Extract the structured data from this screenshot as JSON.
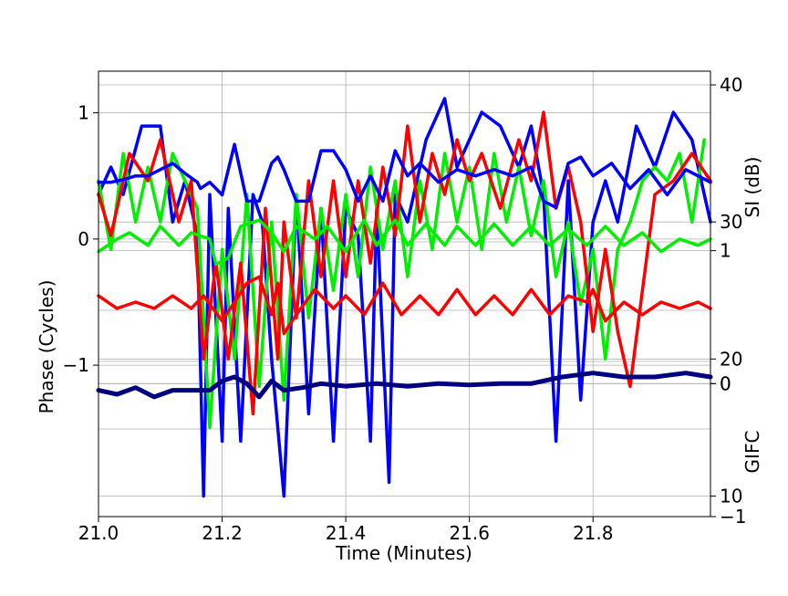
{
  "chart_data": {
    "type": "line",
    "xlabel": "Time (Minutes)",
    "x_ticks": [
      "21.0",
      "21.2",
      "21.4",
      "21.6",
      "21.8"
    ],
    "xlim": [
      21.0,
      21.99
    ],
    "grid": true,
    "legend": "none",
    "panels": {
      "si": {
        "ylabel": "SI (dB)",
        "ylim": [
          8.5,
          41
        ],
        "ticks": [
          "10",
          "20",
          "30",
          "40"
        ],
        "tick_values": [
          10,
          20,
          30,
          40
        ]
      },
      "phase": {
        "ylabel": "Phase (Cycles)",
        "ylim": [
          -2.2,
          1.33
        ],
        "ticks": [
          "−1",
          "0",
          "1"
        ],
        "tick_values": [
          -1,
          0,
          1
        ]
      },
      "gifc": {
        "ylabel": "GIFC",
        "ylim": [
          -1,
          2.35
        ],
        "ticks": [
          "−1",
          "0",
          "1",
          "0"
        ],
        "tick_values": [
          -1,
          0,
          1,
          0
        ]
      }
    },
    "colors": {
      "blue": "#0000ff",
      "green": "#00ee00",
      "red": "#ff0000",
      "navy": "#000080",
      "grid": "#b0b0b0"
    },
    "series": [
      {
        "color": "blue",
        "panel": "si",
        "x": [
          21.0,
          21.02,
          21.04,
          21.07,
          21.1,
          21.12,
          21.14,
          21.16,
          21.17,
          21.18,
          21.2,
          21.21,
          21.23,
          21.25,
          21.265,
          21.28,
          21.3,
          21.32,
          21.34,
          21.36,
          21.38,
          21.4,
          21.42,
          21.44,
          21.45,
          21.47,
          21.48,
          21.5,
          21.53,
          21.56,
          21.58,
          21.6,
          21.62,
          21.65,
          21.68,
          21.7,
          21.72,
          21.74,
          21.76,
          21.78,
          21.8,
          21.82,
          21.84,
          21.87,
          21.9,
          21.93,
          21.96,
          21.99
        ],
        "y": [
          32,
          34,
          32,
          37,
          37,
          30,
          33,
          29,
          10,
          32,
          14,
          31,
          14,
          32,
          30,
          20,
          10,
          32,
          16,
          31,
          14,
          31,
          29,
          14,
          31,
          11,
          32,
          30,
          36,
          39,
          34,
          36,
          38,
          37,
          34,
          37,
          32,
          14,
          33,
          17,
          30,
          33,
          30,
          37,
          34,
          38,
          36,
          30
        ]
      },
      {
        "color": "green",
        "panel": "si",
        "x": [
          21.0,
          21.02,
          21.04,
          21.06,
          21.08,
          21.1,
          21.12,
          21.14,
          21.16,
          21.18,
          21.2,
          21.22,
          21.24,
          21.26,
          21.28,
          21.3,
          21.32,
          21.34,
          21.36,
          21.38,
          21.4,
          21.42,
          21.44,
          21.46,
          21.48,
          21.5,
          21.52,
          21.54,
          21.56,
          21.58,
          21.6,
          21.62,
          21.64,
          21.66,
          21.68,
          21.7,
          21.72,
          21.74,
          21.76,
          21.78,
          21.8,
          21.82,
          21.84,
          21.86,
          21.88,
          21.9,
          21.92,
          21.94,
          21.96,
          21.98
        ],
        "y": [
          33,
          28,
          35,
          30,
          34,
          30,
          35,
          33,
          31,
          15,
          28,
          20,
          32,
          18,
          30,
          17,
          32,
          23,
          31,
          25,
          32,
          26,
          34,
          28,
          33,
          26,
          33,
          28,
          35,
          30,
          34,
          28,
          35,
          30,
          34,
          29,
          33,
          26,
          30,
          24,
          28,
          20,
          28,
          30,
          33,
          34,
          33,
          35,
          30,
          36
        ]
      },
      {
        "color": "red",
        "panel": "si",
        "x": [
          21.0,
          21.02,
          21.05,
          21.08,
          21.1,
          21.13,
          21.15,
          21.17,
          21.19,
          21.21,
          21.23,
          21.25,
          21.27,
          21.29,
          21.3,
          21.32,
          21.34,
          21.36,
          21.38,
          21.4,
          21.42,
          21.44,
          21.46,
          21.48,
          21.5,
          21.52,
          21.54,
          21.56,
          21.58,
          21.6,
          21.62,
          21.65,
          21.68,
          21.7,
          21.72,
          21.74,
          21.76,
          21.78,
          21.8,
          21.82,
          21.84,
          21.86,
          21.88,
          21.9,
          21.93,
          21.96,
          21.99
        ],
        "y": [
          32,
          29,
          35,
          33,
          36,
          30,
          33,
          20,
          27,
          20,
          27,
          16,
          31,
          20,
          30,
          23,
          33,
          26,
          33,
          26,
          33,
          27,
          34,
          29,
          37,
          30,
          35,
          32,
          36,
          33,
          35,
          31,
          36,
          33,
          38,
          31,
          34,
          30,
          22,
          28,
          22,
          18,
          25,
          32,
          33,
          35,
          33
        ]
      },
      {
        "color": "blue",
        "panel": "phase",
        "x": [
          21.0,
          21.02,
          21.04,
          21.06,
          21.08,
          21.1,
          21.12,
          21.14,
          21.16,
          21.165,
          21.18,
          21.2,
          21.22,
          21.24,
          21.26,
          21.28,
          21.29,
          21.3,
          21.32,
          21.34,
          21.36,
          21.38,
          21.4,
          21.42,
          21.44,
          21.46,
          21.48,
          21.5,
          21.52,
          21.55,
          21.58,
          21.61,
          21.64,
          21.67,
          21.7,
          21.72,
          21.74,
          21.76,
          21.78,
          21.8,
          21.83,
          21.86,
          21.89,
          21.92,
          21.95,
          21.99
        ],
        "y": [
          0.45,
          0.45,
          0.47,
          0.5,
          0.5,
          0.55,
          0.6,
          0.52,
          0.45,
          0.4,
          0.45,
          0.35,
          0.75,
          0.3,
          0.3,
          0.6,
          0.65,
          0.55,
          0.3,
          0.3,
          0.7,
          0.7,
          0.55,
          0.3,
          0.5,
          0.3,
          0.7,
          0.5,
          0.6,
          0.45,
          0.55,
          0.5,
          0.55,
          0.5,
          0.57,
          0.3,
          0.25,
          0.6,
          0.65,
          0.5,
          0.6,
          0.4,
          0.55,
          0.35,
          0.55,
          0.45
        ]
      },
      {
        "color": "green",
        "panel": "phase",
        "x": [
          21.0,
          21.03,
          21.05,
          21.08,
          21.1,
          21.13,
          21.15,
          21.18,
          21.19,
          21.21,
          21.23,
          21.26,
          21.28,
          21.3,
          21.32,
          21.35,
          21.37,
          21.4,
          21.43,
          21.45,
          21.48,
          21.5,
          21.53,
          21.56,
          21.58,
          21.61,
          21.64,
          21.67,
          21.7,
          21.73,
          21.76,
          21.79,
          21.82,
          21.85,
          21.88,
          21.91,
          21.94,
          21.97,
          21.99
        ],
        "y": [
          -0.1,
          0.0,
          0.05,
          -0.05,
          0.1,
          -0.05,
          0.05,
          0.0,
          -0.2,
          -0.15,
          0.1,
          0.15,
          0.05,
          -0.1,
          0.1,
          0.0,
          0.1,
          -0.1,
          0.15,
          -0.05,
          0.15,
          -0.05,
          0.12,
          -0.05,
          0.1,
          -0.05,
          0.12,
          -0.05,
          0.1,
          -0.05,
          0.08,
          -0.05,
          0.1,
          -0.05,
          0.05,
          -0.1,
          0.0,
          -0.05,
          0.0
        ]
      },
      {
        "color": "red",
        "panel": "phase",
        "x": [
          21.0,
          21.03,
          21.06,
          21.09,
          21.12,
          21.15,
          21.17,
          21.2,
          21.22,
          21.24,
          21.26,
          21.28,
          21.29,
          21.3,
          21.32,
          21.35,
          21.38,
          21.4,
          21.43,
          21.46,
          21.49,
          21.52,
          21.55,
          21.58,
          21.61,
          21.64,
          21.67,
          21.7,
          21.73,
          21.76,
          21.79,
          21.8,
          21.82,
          21.85,
          21.88,
          21.91,
          21.94,
          21.97,
          21.99
        ],
        "y": [
          -0.45,
          -0.55,
          -0.5,
          -0.55,
          -0.45,
          -0.55,
          -0.45,
          -0.65,
          -0.5,
          -0.35,
          -0.3,
          -0.6,
          -0.35,
          -0.75,
          -0.6,
          -0.4,
          -0.55,
          -0.45,
          -0.6,
          -0.35,
          -0.6,
          -0.45,
          -0.6,
          -0.4,
          -0.6,
          -0.45,
          -0.6,
          -0.4,
          -0.6,
          -0.45,
          -0.5,
          -0.4,
          -0.65,
          -0.5,
          -0.6,
          -0.5,
          -0.55,
          -0.5,
          -0.55
        ]
      },
      {
        "color": "navy",
        "panel": "gifc",
        "x": [
          21.0,
          21.03,
          21.06,
          21.09,
          21.12,
          21.15,
          21.18,
          21.2,
          21.22,
          21.24,
          21.26,
          21.28,
          21.3,
          21.33,
          21.36,
          21.4,
          21.45,
          21.5,
          21.55,
          21.6,
          21.65,
          21.7,
          21.75,
          21.8,
          21.85,
          21.9,
          21.95,
          21.99
        ],
        "y": [
          -0.05,
          -0.08,
          -0.03,
          -0.1,
          -0.05,
          -0.05,
          -0.05,
          0.02,
          0.05,
          0.0,
          -0.1,
          0.02,
          -0.05,
          -0.03,
          0.0,
          -0.02,
          0.0,
          -0.02,
          0.0,
          -0.01,
          0.0,
          0.0,
          0.05,
          0.08,
          0.05,
          0.05,
          0.08,
          0.05
        ]
      }
    ]
  }
}
